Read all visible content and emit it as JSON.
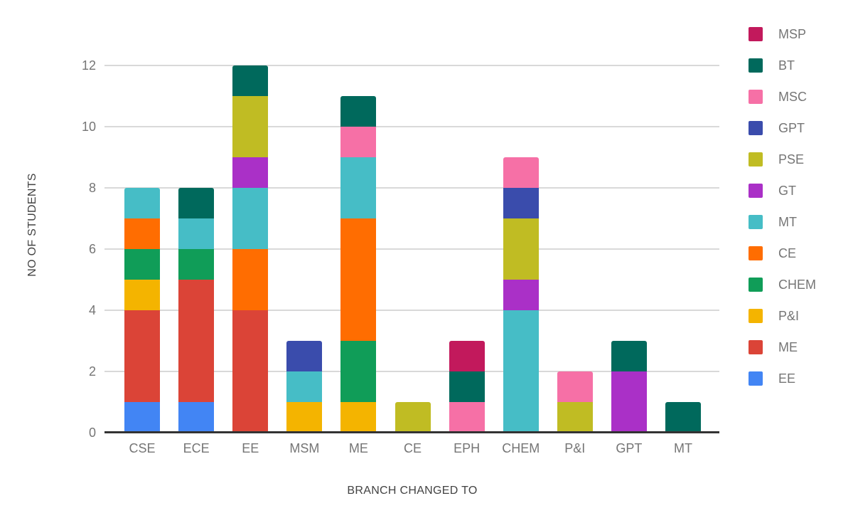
{
  "chart_data": {
    "type": "bar",
    "stacked": true,
    "title": "",
    "xlabel": "BRANCH CHANGED TO",
    "ylabel": "NO OF STUDENTS",
    "ylim": [
      0,
      12
    ],
    "yticks": [
      0,
      2,
      4,
      6,
      8,
      10,
      12
    ],
    "grid": true,
    "legend_position": "right",
    "categories": [
      "CSE",
      "ECE",
      "EE",
      "MSM",
      "ME",
      "CE",
      "EPH",
      "CHEM",
      "P&I",
      "GPT",
      "MT"
    ],
    "series": [
      {
        "name": "EE",
        "color": "#4285F4",
        "values": [
          1,
          1,
          0,
          0,
          0,
          0,
          0,
          0,
          0,
          0,
          0
        ]
      },
      {
        "name": "ME",
        "color": "#DB4437",
        "values": [
          3,
          4,
          4,
          0,
          0,
          0,
          0,
          0,
          0,
          0,
          0
        ]
      },
      {
        "name": "P&I",
        "color": "#F4B400",
        "values": [
          1,
          0,
          0,
          1,
          1,
          0,
          0,
          0,
          0,
          0,
          0
        ]
      },
      {
        "name": "CHEM",
        "color": "#109D58",
        "values": [
          1,
          1,
          0,
          0,
          2,
          0,
          0,
          0,
          0,
          0,
          0
        ]
      },
      {
        "name": "CE",
        "color": "#FF6D01",
        "values": [
          1,
          0,
          2,
          0,
          4,
          0,
          0,
          0,
          0,
          0,
          0
        ]
      },
      {
        "name": "MT",
        "color": "#46BDC6",
        "values": [
          1,
          1,
          2,
          1,
          2,
          0,
          0,
          4,
          0,
          0,
          0
        ]
      },
      {
        "name": "GT",
        "color": "#AA30C7",
        "values": [
          0,
          0,
          1,
          0,
          0,
          0,
          0,
          1,
          0,
          2,
          0
        ]
      },
      {
        "name": "PSE",
        "color": "#C0BC23",
        "values": [
          0,
          0,
          2,
          0,
          0,
          1,
          0,
          2,
          1,
          0,
          0
        ]
      },
      {
        "name": "GPT",
        "color": "#3A4CAC",
        "values": [
          0,
          0,
          0,
          1,
          0,
          0,
          0,
          1,
          0,
          0,
          0
        ]
      },
      {
        "name": "MSC",
        "color": "#F670A6",
        "values": [
          0,
          0,
          0,
          0,
          1,
          0,
          1,
          1,
          1,
          0,
          0
        ]
      },
      {
        "name": "BT",
        "color": "#00695C",
        "values": [
          0,
          1,
          1,
          0,
          1,
          0,
          1,
          0,
          0,
          1,
          1
        ]
      },
      {
        "name": "MSP",
        "color": "#C2195C",
        "values": [
          0,
          0,
          0,
          0,
          0,
          0,
          1,
          0,
          0,
          0,
          0
        ]
      }
    ],
    "legend_order": [
      "MSP",
      "BT",
      "MSC",
      "GPT",
      "PSE",
      "GT",
      "MT",
      "CE",
      "CHEM",
      "P&I",
      "ME",
      "EE"
    ],
    "bar_totals": [
      8,
      8,
      12,
      3,
      11,
      1,
      3,
      9,
      2,
      3,
      1
    ]
  },
  "colors": {
    "axis_line": "#333333",
    "gridline": "#D9D9D9",
    "tick_text": "#757575",
    "axis_title_text": "#424242",
    "background": "#FFFFFF"
  }
}
